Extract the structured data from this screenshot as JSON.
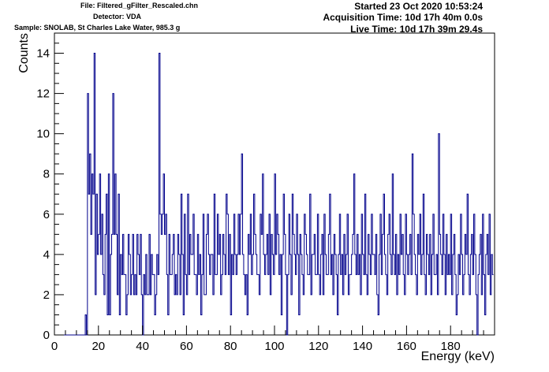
{
  "header": {
    "file": "File: Filtered_gFilter_Rescaled.chn",
    "detector": "Detector: VDA",
    "sample": "Sample: SNOLAB, St Charles Lake Water, 985.3 g",
    "started": "Started 23 Oct 2020 10:53:24",
    "acquisition": "Acquisition Time: 10d 17h 40m 0.0s",
    "live": "Live Time: 10d 17h 39m 29.4s"
  },
  "chart_data": {
    "type": "histogram",
    "title": "",
    "xlabel": "Energy (keV)",
    "ylabel": "Counts",
    "xlim": [
      0,
      200
    ],
    "ylim": [
      0,
      15
    ],
    "x_ticks": [
      0,
      20,
      40,
      60,
      80,
      100,
      120,
      140,
      160,
      180
    ],
    "y_ticks": [
      0,
      2,
      4,
      6,
      8,
      10,
      12,
      14
    ],
    "bin_width_keV": 0.5,
    "line_color": "#00008b",
    "counts": [
      0,
      0,
      0,
      0,
      0,
      0,
      0,
      0,
      0,
      0,
      0,
      0,
      0,
      0,
      0,
      0,
      0,
      0,
      0,
      0,
      0,
      0,
      0,
      0,
      0,
      0,
      0,
      0,
      1,
      0,
      12,
      7,
      9,
      5,
      8,
      7,
      14,
      2,
      7,
      4,
      5,
      8,
      4,
      6,
      3,
      2,
      5,
      7,
      1,
      8,
      1,
      4,
      5,
      12,
      5,
      8,
      5,
      2,
      7,
      1,
      4,
      3,
      5,
      3,
      3,
      1,
      2,
      5,
      4,
      2,
      3,
      5,
      2,
      3,
      2,
      5,
      4,
      3,
      5,
      2,
      0,
      3,
      2,
      4,
      2,
      2,
      5,
      2,
      4,
      3,
      3,
      1,
      2,
      4,
      3,
      14,
      6,
      5,
      6,
      8,
      5,
      6,
      3,
      1,
      5,
      3,
      3,
      4,
      5,
      2,
      3,
      2,
      5,
      4,
      2,
      7,
      4,
      1,
      6,
      3,
      2,
      7,
      3,
      5,
      4,
      4,
      6,
      3,
      3,
      2,
      5,
      3,
      4,
      1,
      3,
      6,
      2,
      2,
      5,
      6,
      4,
      3,
      4,
      4,
      2,
      7,
      3,
      3,
      6,
      4,
      5,
      2,
      3,
      5,
      4,
      3,
      7,
      6,
      3,
      5,
      1,
      4,
      3,
      6,
      4,
      3,
      4,
      6,
      4,
      6,
      9,
      4,
      3,
      2,
      3,
      1,
      5,
      4,
      6,
      3,
      4,
      7,
      5,
      4,
      3,
      3,
      2,
      6,
      5,
      8,
      4,
      3,
      4,
      5,
      3,
      6,
      2,
      5,
      4,
      3,
      8,
      4,
      6,
      5,
      3,
      4,
      1,
      4,
      7,
      5,
      3,
      0,
      3,
      6,
      4,
      2,
      7,
      5,
      4,
      3,
      6,
      4,
      1,
      5,
      4,
      3,
      2,
      6,
      5,
      4,
      3,
      3,
      7,
      2,
      4,
      4,
      5,
      3,
      3,
      6,
      3,
      2,
      4,
      5,
      2,
      6,
      4,
      3,
      3,
      5,
      7,
      3,
      4,
      2,
      5,
      4,
      3,
      1,
      4,
      6,
      3,
      4,
      2,
      5,
      3,
      4,
      6,
      2,
      3,
      3,
      4,
      5,
      8,
      4,
      3,
      5,
      3,
      4,
      2,
      6,
      4,
      3,
      7,
      3,
      2,
      5,
      4,
      3,
      6,
      4,
      4,
      3,
      5,
      2,
      1,
      4,
      6,
      3,
      5,
      7,
      4,
      3,
      2,
      5,
      6,
      4,
      3,
      8,
      4,
      3,
      5,
      2,
      4,
      3,
      6,
      4,
      5,
      3,
      2,
      6,
      4,
      3,
      4,
      5,
      3,
      9,
      6,
      4,
      3,
      2,
      5,
      4,
      6,
      3,
      4,
      7,
      3,
      2,
      5,
      4,
      3,
      5,
      2,
      4,
      6,
      3,
      3,
      4,
      2,
      10,
      5,
      4,
      3,
      6,
      4,
      2,
      5,
      3,
      4,
      3,
      6,
      2,
      4,
      5,
      3,
      1,
      2,
      4,
      3,
      6,
      4,
      2,
      3,
      5,
      4,
      7,
      3,
      2,
      4,
      5,
      3,
      6,
      4,
      2,
      0,
      3,
      4,
      5,
      2,
      6,
      3,
      1,
      4,
      5,
      3,
      6,
      2,
      4,
      3
    ]
  }
}
